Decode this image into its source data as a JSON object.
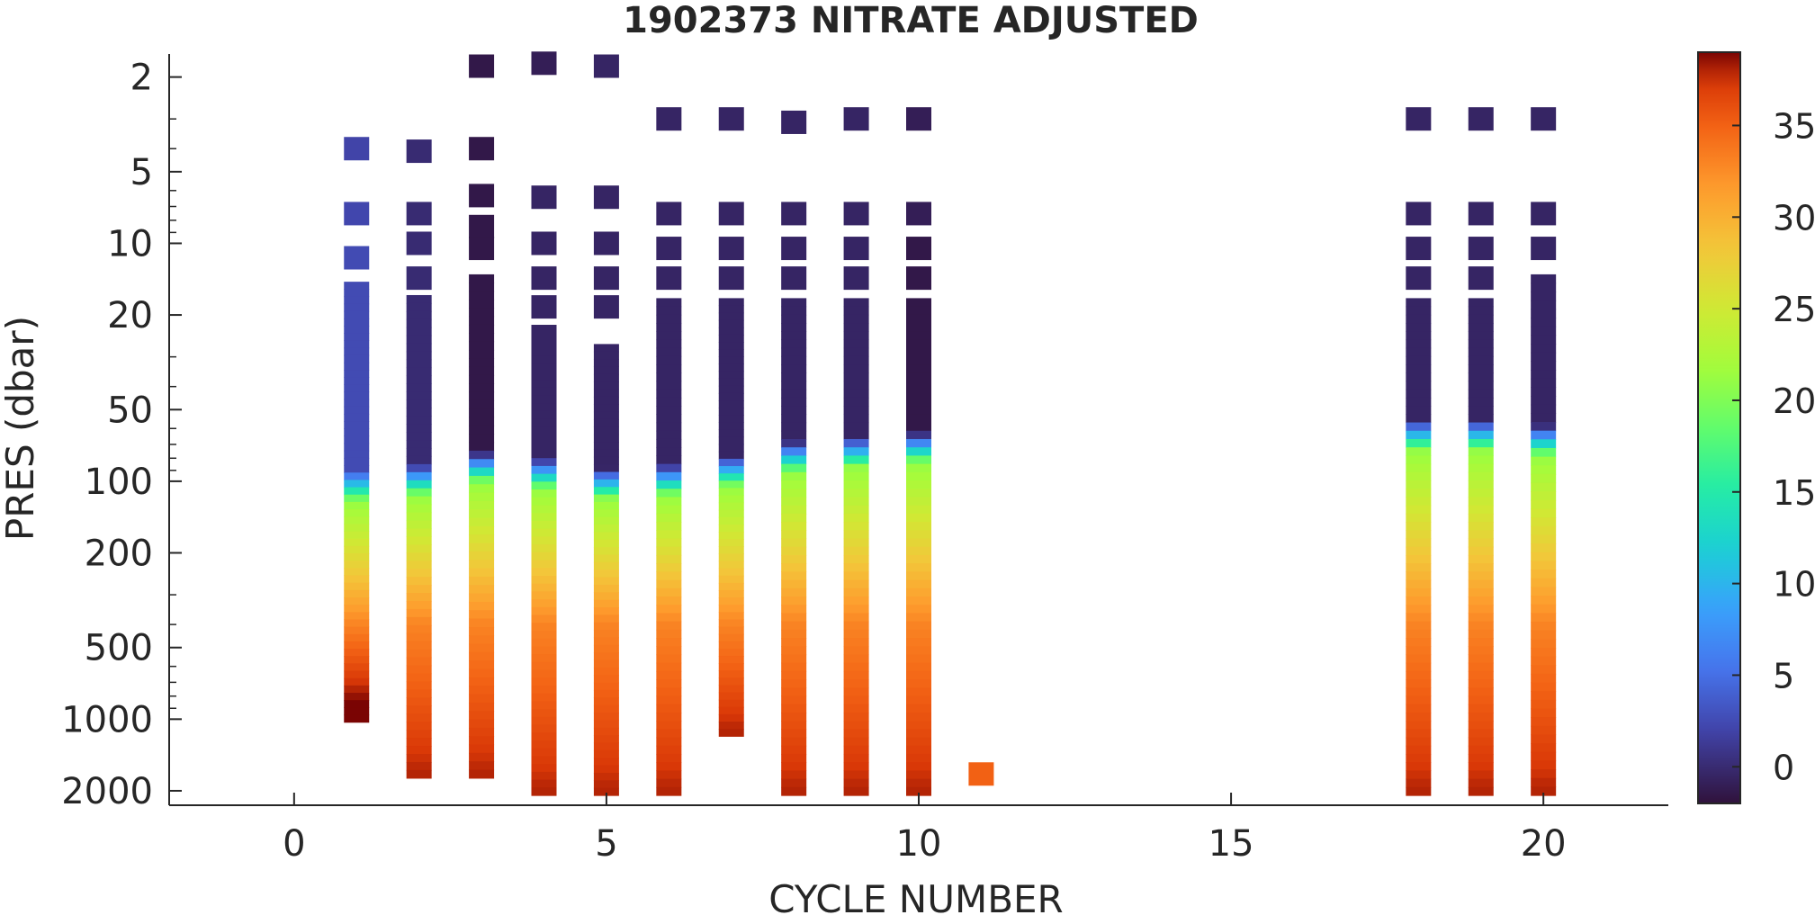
{
  "chart_data": {
    "type": "heatmap",
    "title": "1902373  NITRATE ADJUSTED",
    "xlabel": "CYCLE NUMBER",
    "ylabel": "PRES (dbar)",
    "xlim": [
      -2,
      22
    ],
    "ylim": [
      1.6,
      2300
    ],
    "y_scale": "log",
    "y_reversed": true,
    "xticks": [
      0,
      5,
      10,
      15,
      20
    ],
    "yticks": [
      2,
      5,
      10,
      20,
      50,
      100,
      200,
      500,
      1000,
      2000
    ],
    "colormap": "turbo",
    "clim": [
      -2,
      39
    ],
    "colorbar_ticks": [
      0,
      5,
      10,
      15,
      20,
      25,
      30,
      35
    ],
    "grid": false,
    "profiles": [
      {
        "cycle": 1,
        "shallow": [
          {
            "p": 4,
            "v": 2
          },
          {
            "p": 7.5,
            "v": 2.2
          },
          {
            "p": 11.5,
            "v": 2.5
          }
        ],
        "continuous_top": 14.5,
        "nitracline": 90,
        "bottom": 960,
        "bottom_value": 39
      },
      {
        "cycle": 2,
        "shallow": [
          {
            "p": 4.1,
            "v": 0
          },
          {
            "p": 7.5,
            "v": 0
          },
          {
            "p": 10,
            "v": 0
          },
          {
            "p": 14,
            "v": 0
          }
        ],
        "continuous_top": 16.5,
        "nitracline": 85,
        "bottom": 1650,
        "bottom_value": 37
      },
      {
        "cycle": 3,
        "shallow": [
          {
            "p": 1.8,
            "v": -1.5
          },
          {
            "p": 4,
            "v": -1.5
          },
          {
            "p": 6.3,
            "v": -1.5
          },
          {
            "p": 8.5,
            "v": -1.5
          },
          {
            "p": 10.5,
            "v": -1.5
          }
        ],
        "continuous_top": 13.5,
        "nitracline": 75,
        "bottom": 1650,
        "bottom_value": 37
      },
      {
        "cycle": 4,
        "shallow": [
          {
            "p": 1.75,
            "v": -1
          },
          {
            "p": 6.4,
            "v": -0.5
          },
          {
            "p": 10,
            "v": -0.5
          },
          {
            "p": 14,
            "v": -0.5
          },
          {
            "p": 18.5,
            "v": -0.5
          }
        ],
        "continuous_top": 22,
        "nitracline": 80,
        "bottom": 1950,
        "bottom_value": 37
      },
      {
        "cycle": 5,
        "shallow": [
          {
            "p": 1.8,
            "v": -0.5
          },
          {
            "p": 6.4,
            "v": -0.5
          },
          {
            "p": 10,
            "v": -0.5
          },
          {
            "p": 14,
            "v": -0.5
          },
          {
            "p": 18.5,
            "v": -0.5
          }
        ],
        "continuous_top": 26.5,
        "nitracline": 88,
        "bottom": 1950,
        "bottom_value": 37
      },
      {
        "cycle": 6,
        "shallow": [
          {
            "p": 3,
            "v": -0.5
          },
          {
            "p": 7.5,
            "v": -0.5
          },
          {
            "p": 10.5,
            "v": -0.5
          },
          {
            "p": 14,
            "v": -0.5
          }
        ],
        "continuous_top": 17,
        "nitracline": 85,
        "bottom": 1950,
        "bottom_value": 37
      },
      {
        "cycle": 7,
        "shallow": [
          {
            "p": 3,
            "v": -0.5
          },
          {
            "p": 7.5,
            "v": -0.5
          },
          {
            "p": 10.5,
            "v": -0.5
          },
          {
            "p": 14,
            "v": -0.5
          }
        ],
        "continuous_top": 17,
        "nitracline": 78,
        "bottom": 1100,
        "bottom_value": 37
      },
      {
        "cycle": 8,
        "shallow": [
          {
            "p": 3.1,
            "v": -0.5
          },
          {
            "p": 7.5,
            "v": -0.5
          },
          {
            "p": 10.5,
            "v": -0.5
          },
          {
            "p": 14,
            "v": -0.5
          }
        ],
        "continuous_top": 17,
        "nitracline": 68,
        "bottom": 1950,
        "bottom_value": 37
      },
      {
        "cycle": 9,
        "shallow": [
          {
            "p": 3,
            "v": -0.5
          },
          {
            "p": 7.5,
            "v": -0.5
          },
          {
            "p": 10.5,
            "v": -0.5
          },
          {
            "p": 14,
            "v": -0.5
          }
        ],
        "continuous_top": 17,
        "nitracline": 65,
        "bottom": 1950,
        "bottom_value": 37
      },
      {
        "cycle": 10,
        "shallow": [
          {
            "p": 3,
            "v": -1
          },
          {
            "p": 7.5,
            "v": -1
          },
          {
            "p": 10.5,
            "v": -1.5
          },
          {
            "p": 14,
            "v": -1.5
          }
        ],
        "continuous_top": 17,
        "nitracline": 62,
        "bottom": 1950,
        "bottom_value": 37
      },
      {
        "cycle": 11,
        "shallow": [
          {
            "p": 1700,
            "v": 35
          }
        ],
        "continuous_top": null,
        "nitracline": null,
        "bottom": null,
        "bottom_value": null
      },
      {
        "cycle": 18,
        "shallow": [
          {
            "p": 3,
            "v": -0.5
          },
          {
            "p": 7.5,
            "v": -0.5
          },
          {
            "p": 10.5,
            "v": -0.5
          },
          {
            "p": 14,
            "v": -0.5
          }
        ],
        "continuous_top": 17,
        "nitracline": 55,
        "bottom": 1950,
        "bottom_value": 37
      },
      {
        "cycle": 19,
        "shallow": [
          {
            "p": 3,
            "v": -0.5
          },
          {
            "p": 7.5,
            "v": -0.5
          },
          {
            "p": 10.5,
            "v": -0.5
          },
          {
            "p": 14,
            "v": -0.5
          }
        ],
        "continuous_top": 17,
        "nitracline": 55,
        "bottom": 1950,
        "bottom_value": 37
      },
      {
        "cycle": 20,
        "shallow": [
          {
            "p": 3,
            "v": -0.5
          },
          {
            "p": 7.5,
            "v": -0.5
          },
          {
            "p": 10.5,
            "v": -0.5
          }
        ],
        "continuous_top": 13.5,
        "nitracline": 58,
        "bottom": 1950,
        "bottom_value": 37
      }
    ]
  }
}
